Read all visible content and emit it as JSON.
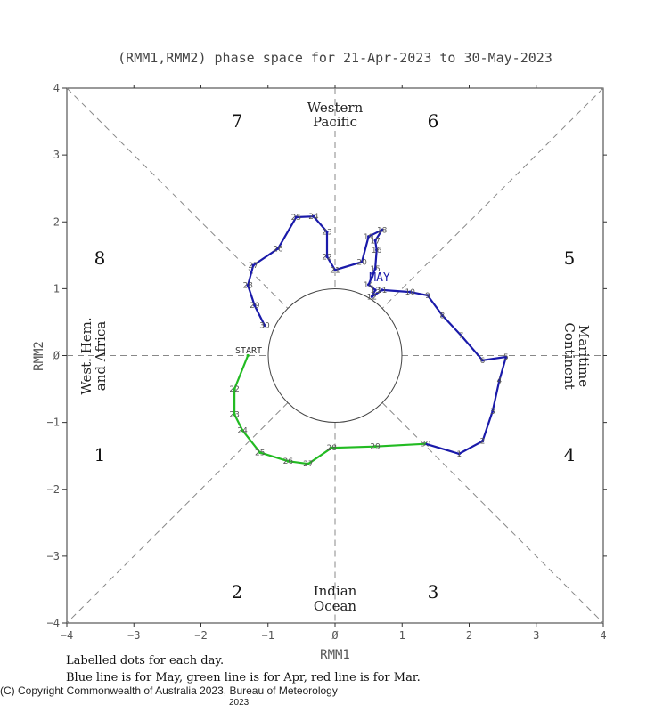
{
  "chart_data": {
    "type": "line",
    "title": "(RMM1,RMM2) phase space for 21-Apr-2023 to 30-May-2023",
    "xlabel": "RMM1",
    "ylabel": "RMM2",
    "xlim": [
      -4,
      4
    ],
    "ylim": [
      -4,
      4
    ],
    "x_ticks": [
      "−4",
      "−3",
      "−2",
      "−1",
      "Ø",
      "1",
      "2",
      "3",
      "4"
    ],
    "y_ticks": [
      "−4",
      "−3",
      "−2",
      "−1",
      "Ø",
      "1",
      "2",
      "3",
      "4"
    ],
    "phase_numbers": [
      "1",
      "2",
      "3",
      "4",
      "5",
      "6",
      "7",
      "8"
    ],
    "regions": {
      "top": [
        "Western",
        "Pacific"
      ],
      "bottom": [
        "Indian",
        "Ocean"
      ],
      "left": [
        "West. Hem.",
        "and Africa"
      ],
      "right": [
        "Maritime",
        "Continent"
      ]
    },
    "start_label": "START",
    "month_marker": "MAY",
    "series": [
      {
        "name": "Apr",
        "color": "#22bb22",
        "points": [
          {
            "day": "",
            "x": -1.3,
            "y": 0.0
          },
          {
            "day": "22",
            "x": -1.5,
            "y": -0.5
          },
          {
            "day": "23",
            "x": -1.5,
            "y": -0.88
          },
          {
            "day": "24",
            "x": -1.38,
            "y": -1.12
          },
          {
            "day": "25",
            "x": -1.12,
            "y": -1.45
          },
          {
            "day": "26",
            "x": -0.7,
            "y": -1.58
          },
          {
            "day": "27",
            "x": -0.4,
            "y": -1.62
          },
          {
            "day": "28",
            "x": -0.05,
            "y": -1.38
          },
          {
            "day": "29",
            "x": 0.6,
            "y": -1.36
          },
          {
            "day": "30",
            "x": 1.35,
            "y": -1.32
          }
        ]
      },
      {
        "name": "May",
        "color": "#1a1aaa",
        "points": [
          {
            "day": "1",
            "x": 1.85,
            "y": -1.47
          },
          {
            "day": "2",
            "x": 2.2,
            "y": -1.28
          },
          {
            "day": "3",
            "x": 2.35,
            "y": -0.83
          },
          {
            "day": "4",
            "x": 2.45,
            "y": -0.37
          },
          {
            "day": "5",
            "x": 2.55,
            "y": -0.02
          },
          {
            "day": "6",
            "x": 2.2,
            "y": -0.07
          },
          {
            "day": "7",
            "x": 1.88,
            "y": 0.3
          },
          {
            "day": "8",
            "x": 1.6,
            "y": 0.6
          },
          {
            "day": "9",
            "x": 1.38,
            "y": 0.9
          },
          {
            "day": "10",
            "x": 1.12,
            "y": 0.95
          },
          {
            "day": "11",
            "x": 0.7,
            "y": 0.98
          },
          {
            "day": "12",
            "x": 0.55,
            "y": 0.88
          },
          {
            "day": "13",
            "x": 0.6,
            "y": 0.98
          },
          {
            "day": "14",
            "x": 0.5,
            "y": 1.06
          },
          {
            "day": "15",
            "x": 0.6,
            "y": 1.3
          },
          {
            "day": "16",
            "x": 0.62,
            "y": 1.58
          },
          {
            "day": "17",
            "x": 0.6,
            "y": 1.72
          },
          {
            "day": "18",
            "x": 0.7,
            "y": 1.88
          },
          {
            "day": "19",
            "x": 0.5,
            "y": 1.78
          },
          {
            "day": "20",
            "x": 0.4,
            "y": 1.4
          },
          {
            "day": "21",
            "x": 0.0,
            "y": 1.28
          },
          {
            "day": "22",
            "x": -0.12,
            "y": 1.48
          },
          {
            "day": "23",
            "x": -0.12,
            "y": 1.85
          },
          {
            "day": "24",
            "x": -0.32,
            "y": 2.08
          },
          {
            "day": "25",
            "x": -0.58,
            "y": 2.07
          },
          {
            "day": "26",
            "x": -0.85,
            "y": 1.6
          },
          {
            "day": "27",
            "x": -1.22,
            "y": 1.35
          },
          {
            "day": "28",
            "x": -1.3,
            "y": 1.05
          },
          {
            "day": "29",
            "x": -1.2,
            "y": 0.75
          },
          {
            "day": "30",
            "x": -1.05,
            "y": 0.45
          }
        ]
      }
    ],
    "grid": false,
    "legend": "none"
  },
  "notes": {
    "line1": "Labelled dots for each day.",
    "line2": "Blue line is for May, green line is for Apr, red line is for Mar."
  },
  "copyright": {
    "text": "(C) Copyright Commonwealth of Australia 2023, Bureau of Meteorology",
    "year_repeat": "2023"
  }
}
